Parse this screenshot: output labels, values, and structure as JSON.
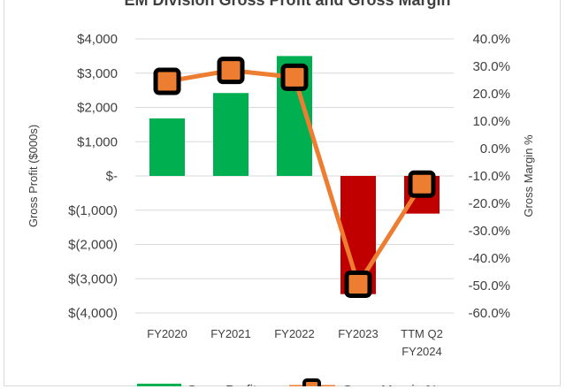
{
  "chart_data": {
    "type": "bar",
    "title": "EM Division Gross Profit and Gross Margin",
    "categories": [
      "FY2020",
      "FY2021",
      "FY2022",
      "FY2023",
      [
        "TTM Q2",
        "FY2024"
      ]
    ],
    "ylabel": "Gross Profit ($000s)",
    "y2label": "Gross Margin %",
    "ylim": [
      -4000,
      4000
    ],
    "y2lim": [
      -0.6,
      0.4
    ],
    "yticks": [
      "$4,000",
      "$3,000",
      "$2,000",
      "$1,000",
      "$-",
      "$(1,000)",
      "$(2,000)",
      "$(3,000)",
      "$(4,000)"
    ],
    "y2ticks": [
      "40.0%",
      "30.0%",
      "20.0%",
      "10.0%",
      "0.0%",
      "-10.0%",
      "-20.0%",
      "-30.0%",
      "-40.0%",
      "-50.0%",
      "-60.0%"
    ],
    "grid": true,
    "legend_position": "bottom",
    "series": [
      {
        "name": "Gross Profit",
        "kind": "bar",
        "values": [
          1680,
          2420,
          3500,
          -3450,
          -1100
        ],
        "colors": [
          "#00b050",
          "#00b050",
          "#00b050",
          "#c00000",
          "#c00000"
        ]
      },
      {
        "name": "Gross Margin %",
        "kind": "line",
        "axis": "secondary",
        "values": [
          0.245,
          0.285,
          0.26,
          -0.495,
          -0.13
        ],
        "line_color": "#ed7d31",
        "marker_fill": "#ed7d31",
        "marker_edge": "#000000"
      }
    ]
  }
}
